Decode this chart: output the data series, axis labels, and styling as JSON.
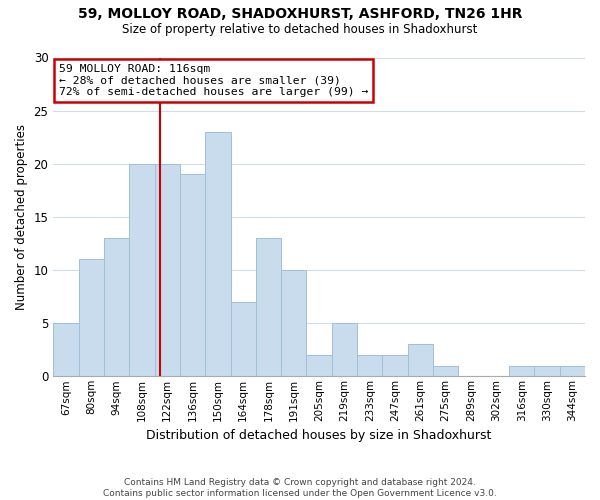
{
  "title": "59, MOLLOY ROAD, SHADOXHURST, ASHFORD, TN26 1HR",
  "subtitle": "Size of property relative to detached houses in Shadoxhurst",
  "xlabel": "Distribution of detached houses by size in Shadoxhurst",
  "ylabel": "Number of detached properties",
  "bar_color": "#c8dced",
  "bar_edge_color": "#a0c0d8",
  "categories": [
    "67sqm",
    "80sqm",
    "94sqm",
    "108sqm",
    "122sqm",
    "136sqm",
    "150sqm",
    "164sqm",
    "178sqm",
    "191sqm",
    "205sqm",
    "219sqm",
    "233sqm",
    "247sqm",
    "261sqm",
    "275sqm",
    "289sqm",
    "302sqm",
    "316sqm",
    "330sqm",
    "344sqm"
  ],
  "values": [
    5,
    11,
    13,
    20,
    20,
    19,
    23,
    7,
    13,
    10,
    2,
    5,
    2,
    2,
    3,
    1,
    0,
    0,
    1,
    1,
    1
  ],
  "ylim": [
    0,
    30
  ],
  "yticks": [
    0,
    5,
    10,
    15,
    20,
    25,
    30
  ],
  "annotation_line1": "59 MOLLOY ROAD: 116sqm",
  "annotation_line2": "← 28% of detached houses are smaller (39)",
  "annotation_line3": "72% of semi-detached houses are larger (99) →",
  "annotation_box_color": "#ffffff",
  "annotation_box_edge_color": "#cc0000",
  "property_line_x": 3.73,
  "footer_line1": "Contains HM Land Registry data © Crown copyright and database right 2024.",
  "footer_line2": "Contains public sector information licensed under the Open Government Licence v3.0.",
  "background_color": "#ffffff",
  "grid_color": "#d0dce8"
}
